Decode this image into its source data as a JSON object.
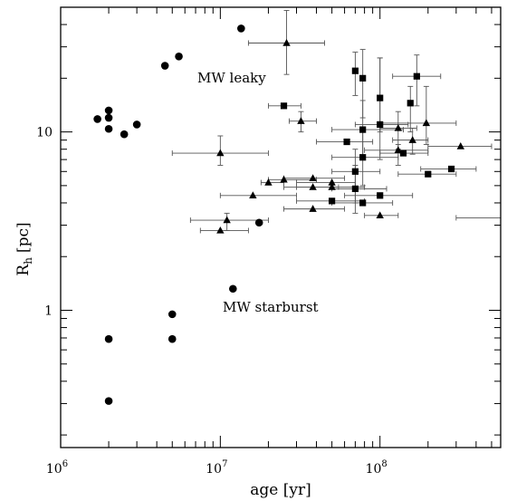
{
  "chart_data": {
    "type": "scatter",
    "title": "",
    "xlabel": "age [yr]",
    "ylabel_main": "R",
    "ylabel_sub": "h",
    "ylabel_unit": "[pc]",
    "xscale": "log",
    "yscale": "log",
    "xlim": [
      1000000,
      570000000
    ],
    "ylim": [
      0.17,
      50
    ],
    "grid": false,
    "x_ticks": [
      {
        "value": 1000000,
        "base": "10",
        "exp": "6"
      },
      {
        "value": 10000000,
        "base": "10",
        "exp": "7"
      },
      {
        "value": 100000000,
        "base": "10",
        "exp": "8"
      }
    ],
    "y_ticks": [
      {
        "value": 1,
        "label": "1"
      },
      {
        "value": 10,
        "label": "10"
      }
    ],
    "annotations": [
      {
        "text": "MW leaky",
        "x": 12000000,
        "y": 23
      },
      {
        "text": "MW starburst",
        "x": 11000000,
        "y": 1.0
      }
    ],
    "series": [
      {
        "marker": "circle",
        "points": [
          {
            "x": 1700000,
            "y": 11.8
          },
          {
            "x": 2000000,
            "y": 13.2
          },
          {
            "x": 2000000,
            "y": 12.0
          },
          {
            "x": 2000000,
            "y": 10.4
          },
          {
            "x": 2500000,
            "y": 9.7
          },
          {
            "x": 3000000,
            "y": 11.0
          },
          {
            "x": 4500000,
            "y": 23.5
          },
          {
            "x": 5500000,
            "y": 26.5
          },
          {
            "x": 13500000,
            "y": 38.0
          },
          {
            "x": 17500000,
            "y": 3.1
          },
          {
            "x": 12000000,
            "y": 1.32
          },
          {
            "x": 5000000,
            "y": 0.95
          },
          {
            "x": 5000000,
            "y": 0.69
          },
          {
            "x": 2000000,
            "y": 0.69
          },
          {
            "x": 2000000,
            "y": 0.31
          }
        ]
      },
      {
        "marker": "square",
        "points": [
          {
            "x": 25000000,
            "y": 14.0,
            "xerr": [
              20000000,
              32000000
            ]
          },
          {
            "x": 70000000,
            "y": 22.0,
            "yerr": [
              16,
              28
            ]
          },
          {
            "x": 78000000,
            "y": 20.0,
            "yerr": [
              12,
              29
            ]
          },
          {
            "x": 100000000,
            "y": 15.5,
            "yerr": [
              10,
              26
            ]
          },
          {
            "x": 170000000,
            "y": 20.5,
            "xerr": [
              120000000,
              240000000
            ],
            "yerr": [
              14,
              27
            ]
          },
          {
            "x": 155000000,
            "y": 14.5,
            "yerr": [
              10,
              18
            ]
          },
          {
            "x": 100000000,
            "y": 11.0,
            "xerr": [
              70000000,
              150000000
            ],
            "yerr": [
              7,
              26
            ]
          },
          {
            "x": 78000000,
            "y": 10.3,
            "xerr": [
              50000000,
              140000000
            ],
            "yerr": [
              7,
              15
            ]
          },
          {
            "x": 62000000,
            "y": 8.8,
            "xerr": [
              40000000,
              90000000
            ]
          },
          {
            "x": 78000000,
            "y": 7.2,
            "xerr": [
              50000000,
              130000000
            ],
            "yerr": [
              5,
              10.5
            ]
          },
          {
            "x": 140000000,
            "y": 7.6,
            "xerr": [
              100000000,
              200000000
            ]
          },
          {
            "x": 70000000,
            "y": 6.0,
            "xerr": [
              50000000,
              100000000
            ],
            "yerr": [
              4,
              8
            ]
          },
          {
            "x": 200000000,
            "y": 5.8,
            "xerr": [
              130000000,
              300000000
            ]
          },
          {
            "x": 280000000,
            "y": 6.2,
            "xerr": [
              180000000,
              400000000
            ]
          },
          {
            "x": 70000000,
            "y": 4.8,
            "xerr": [
              50000000,
              110000000
            ],
            "yerr": [
              3.5,
              6.5
            ]
          },
          {
            "x": 50000000,
            "y": 4.1,
            "xerr": [
              30000000,
              80000000
            ]
          },
          {
            "x": 78000000,
            "y": 4.0,
            "xerr": [
              50000000,
              120000000
            ]
          },
          {
            "x": 100000000,
            "y": 4.4,
            "xerr": [
              60000000,
              160000000
            ]
          }
        ]
      },
      {
        "marker": "triangle",
        "points": [
          {
            "x": 26000000,
            "y": 31.5,
            "xerr": [
              15000000,
              45000000
            ],
            "yerr": [
              21,
              48
            ]
          },
          {
            "x": 32000000,
            "y": 11.5,
            "xerr": [
              27000000,
              40000000
            ],
            "yerr": [
              10,
              13
            ]
          },
          {
            "x": 10000000,
            "y": 7.6,
            "xerr": [
              5000000,
              20000000
            ],
            "yerr": [
              6.5,
              9.5
            ]
          },
          {
            "x": 20000000,
            "y": 5.2,
            "xerr": [
              18000000,
              25000000
            ]
          },
          {
            "x": 25000000,
            "y": 5.4,
            "xerr": [
              20000000,
              40000000
            ]
          },
          {
            "x": 38000000,
            "y": 5.5,
            "xerr": [
              25000000,
              60000000
            ]
          },
          {
            "x": 38000000,
            "y": 4.9,
            "xerr": [
              25000000,
              55000000
            ]
          },
          {
            "x": 50000000,
            "y": 5.2,
            "xerr": [
              30000000,
              70000000
            ]
          },
          {
            "x": 50000000,
            "y": 4.9,
            "xerr": [
              30000000,
              80000000
            ]
          },
          {
            "x": 16000000,
            "y": 4.4,
            "xerr": [
              10000000,
              30000000
            ]
          },
          {
            "x": 38000000,
            "y": 3.7,
            "xerr": [
              25000000,
              60000000
            ]
          },
          {
            "x": 11000000,
            "y": 3.2,
            "xerr": [
              6500000,
              20000000
            ],
            "yerr": [
              2.8,
              3.5
            ]
          },
          {
            "x": 10000000,
            "y": 2.8,
            "xerr": [
              7500000,
              15000000
            ]
          },
          {
            "x": 100000000,
            "y": 3.4,
            "xerr": [
              80000000,
              130000000
            ]
          },
          {
            "x": 130000000,
            "y": 10.5,
            "xerr": [
              100000000,
              170000000
            ],
            "yerr": [
              8,
              13
            ]
          },
          {
            "x": 160000000,
            "y": 9.0,
            "xerr": [
              120000000,
              200000000
            ],
            "yerr": [
              7.5,
              10.5
            ]
          },
          {
            "x": 130000000,
            "y": 7.9,
            "xerr": [
              80000000,
              200000000
            ],
            "yerr": [
              6.5,
              8.5
            ]
          },
          {
            "x": 195000000,
            "y": 11.2,
            "xerr": [
              100000000,
              300000000
            ],
            "yerr": [
              8.5,
              18
            ]
          },
          {
            "x": 320000000,
            "y": 8.3,
            "xerr": [
              200000000,
              500000000
            ]
          }
        ]
      },
      {
        "marker": "bar",
        "points": [
          {
            "x": 450000000,
            "y": 3.3,
            "xerr": [
              300000000,
              570000000
            ]
          }
        ]
      }
    ]
  }
}
